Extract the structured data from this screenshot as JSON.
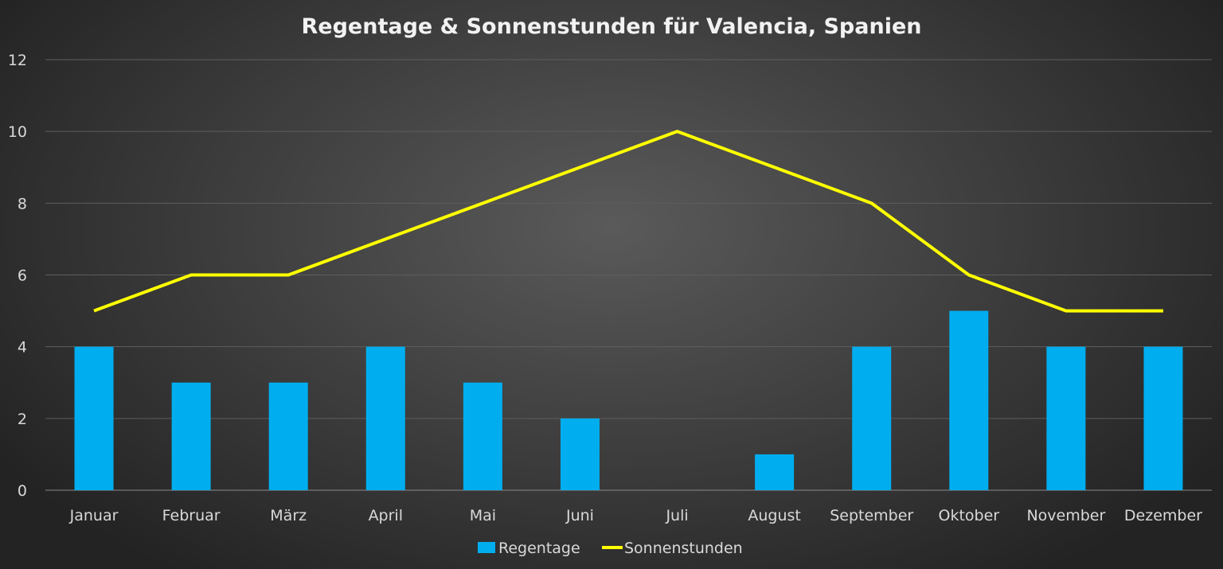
{
  "chart_data": {
    "type": "bar+line",
    "title": "Regentage & Sonnenstunden für Valencia, Spanien",
    "categories": [
      "Januar",
      "Februar",
      "März",
      "April",
      "Mai",
      "Juni",
      "Juli",
      "August",
      "September",
      "Oktober",
      "November",
      "Dezember"
    ],
    "series": [
      {
        "name": "Regentage",
        "type": "bar",
        "color": "#00aeef",
        "values": [
          4,
          3,
          3,
          4,
          3,
          2,
          0,
          1,
          4,
          5,
          4,
          4
        ]
      },
      {
        "name": "Sonnenstunden",
        "type": "line",
        "color": "#ffff00",
        "values": [
          5,
          6,
          6,
          7,
          8,
          9,
          10,
          9,
          8,
          6,
          5,
          5
        ]
      }
    ],
    "ylim": [
      0,
      12
    ],
    "yticks": [
      0,
      2,
      4,
      6,
      8,
      10,
      12
    ],
    "xlabel": "",
    "ylabel": "",
    "grid": true,
    "legend": "bottom"
  }
}
